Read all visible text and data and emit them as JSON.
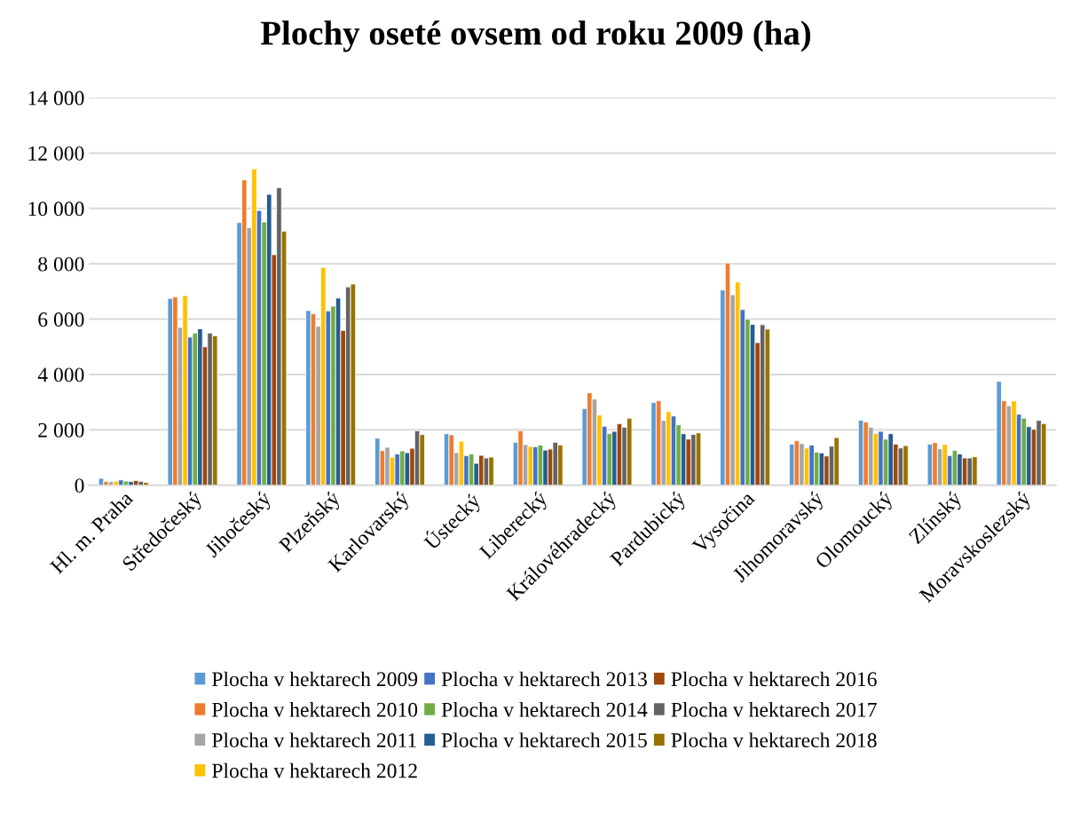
{
  "chart_data": {
    "type": "bar",
    "title": "Plochy oseté ovsem od roku 2009 (ha)",
    "categories": [
      "Hl. m. Praha",
      "Středočeský",
      "Jihočeský",
      "Plzeňský",
      "Karlovarský",
      "Ústecký",
      "Liberecký",
      "Královéhradecký",
      "Pardubický",
      "Vysočina",
      "Jihomoravský",
      "Olomoucký",
      "Zlínský",
      "Moravskoslezský"
    ],
    "series": [
      {
        "name": "Plocha v hektarech 2009",
        "color": "#5b9bd5",
        "values": [
          250,
          6750,
          9490,
          6310,
          1700,
          1860,
          1550,
          2770,
          2990,
          7050,
          1485,
          2350,
          1485,
          3750
        ]
      },
      {
        "name": "Plocha v hektarech 2010",
        "color": "#ed7d31",
        "values": [
          130,
          6800,
          11030,
          6195,
          1250,
          1820,
          1970,
          3340,
          3055,
          8030,
          1610,
          2285,
          1540,
          3055
        ]
      },
      {
        "name": "Plocha v hektarech 2011",
        "color": "#a5a5a5",
        "values": [
          130,
          5700,
          9300,
          5745,
          1370,
          1175,
          1465,
          3110,
          2340,
          6880,
          1505,
          2095,
          1315,
          2870
        ]
      },
      {
        "name": "Plocha v hektarech 2012",
        "color": "#ffc000",
        "values": [
          150,
          6850,
          11430,
          7870,
          1015,
          1590,
          1400,
          2535,
          2660,
          7340,
          1345,
          1870,
          1475,
          3045
        ]
      },
      {
        "name": "Plocha v hektarech 2013",
        "color": "#4472c4",
        "values": [
          190,
          5350,
          9925,
          6300,
          1130,
          1070,
          1390,
          2130,
          2500,
          6345,
          1450,
          1945,
          1070,
          2565
        ]
      },
      {
        "name": "Plocha v hektarech 2014",
        "color": "#70ad47",
        "values": [
          150,
          5500,
          9510,
          6470,
          1240,
          1130,
          1455,
          1870,
          2180,
          6000,
          1195,
          1665,
          1260,
          2425
        ]
      },
      {
        "name": "Plocha v hektarech 2015",
        "color": "#255e91",
        "values": [
          130,
          5650,
          10510,
          6760,
          1175,
          790,
          1270,
          1945,
          1860,
          5810,
          1165,
          1860,
          1130,
          2115
        ]
      },
      {
        "name": "Plocha v hektarech 2016",
        "color": "#9e480e",
        "values": [
          170,
          5000,
          8330,
          5590,
          1335,
          1080,
          1305,
          2225,
          1665,
          5150,
          1055,
          1485,
          985,
          2020
        ]
      },
      {
        "name": "Plocha v hektarech 2017",
        "color": "#636363",
        "values": [
          140,
          5500,
          10750,
          7165,
          1970,
          985,
          1550,
          2095,
          1835,
          5800,
          1410,
          1345,
          985,
          2340
        ]
      },
      {
        "name": "Plocha v hektarech 2018",
        "color": "#997300",
        "values": [
          100,
          5400,
          9180,
          7270,
          1830,
          1015,
          1455,
          2420,
          1890,
          5640,
          1720,
          1430,
          1025,
          2230
        ]
      }
    ],
    "ylim": [
      0,
      14000
    ],
    "yticks": [
      {
        "value": 0,
        "label": "0"
      },
      {
        "value": 2000,
        "label": "2 000"
      },
      {
        "value": 4000,
        "label": "4 000"
      },
      {
        "value": 6000,
        "label": "6 000"
      },
      {
        "value": 8000,
        "label": "8 000"
      },
      {
        "value": 10000,
        "label": "10 000"
      },
      {
        "value": 12000,
        "label": "12 000"
      },
      {
        "value": 14000,
        "label": "14 000"
      }
    ],
    "grid": "y",
    "legend": "bottom"
  }
}
